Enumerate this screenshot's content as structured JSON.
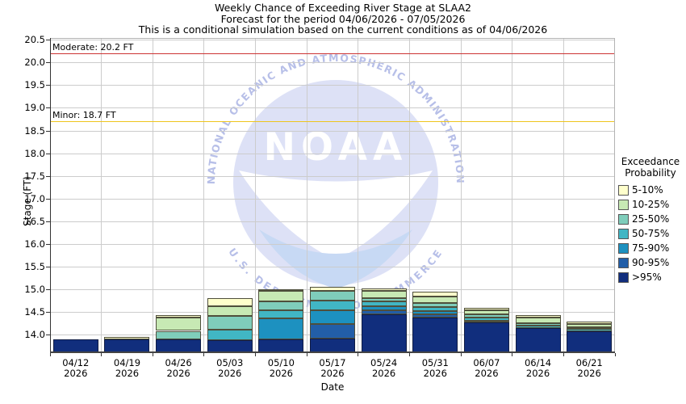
{
  "title": {
    "line1": "Weekly Chance of Exceeding River Stage at SLAA2",
    "line2": "Forecast for the period 04/06/2026 - 07/05/2026",
    "line3": "This is a conditional simulation based on the current conditions as of 04/06/2026"
  },
  "axes": {
    "ylabel": "Stage (FT)",
    "xlabel": "Date",
    "year_label": "2026"
  },
  "reference_lines": [
    {
      "name": "moderate",
      "label": "Moderate: 20.2 FT",
      "value": 20.2,
      "color": "#cc3333"
    },
    {
      "name": "minor",
      "label": "Minor: 18.7 FT",
      "value": 18.7,
      "color": "#eec51e"
    }
  ],
  "legend": {
    "title_line1": "Exceedance",
    "title_line2": "Probability"
  },
  "watermark": {
    "arc_top": "NATIONAL OCEANIC AND ATMOSPHERIC ADMINISTRATION",
    "arc_bottom": "U.S. DEPARTMENT OF COMMERCE",
    "wordmark": "NOAA",
    "circle_color": "#dde1f6",
    "arc_text_color": "#b7bfe8",
    "wordmark_color": "#ffffff",
    "wave_color": "#c7d9f4"
  },
  "chart_data": {
    "type": "bar",
    "stacked": true,
    "title": "Weekly Chance of Exceeding River Stage at SLAA2",
    "xlabel": "Date",
    "ylabel": "Stage (FT)",
    "ylim": [
      13.6,
      20.55
    ],
    "yticks": [
      14.0,
      14.5,
      15.0,
      15.5,
      16.0,
      16.5,
      17.0,
      17.5,
      18.0,
      18.5,
      19.0,
      19.5,
      20.0,
      20.5
    ],
    "grid": true,
    "legend_position": "right",
    "bands_bottom_to_top": [
      {
        "label": ">95%",
        "color": "#112e7d"
      },
      {
        "label": "90-95%",
        "color": "#225ea8"
      },
      {
        "label": "75-90%",
        "color": "#1d91c0"
      },
      {
        "label": "50-75%",
        "color": "#41b6c4"
      },
      {
        "label": "25-50%",
        "color": "#7fcdbb"
      },
      {
        "label": "10-25%",
        "color": "#c7e9b4"
      },
      {
        "label": "5-10%",
        "color": "#ffffcc"
      }
    ],
    "base_stage": 13.6,
    "categories": [
      "04/12",
      "04/19",
      "04/26",
      "05/03",
      "05/10",
      "05/17",
      "05/24",
      "05/31",
      "06/07",
      "06/14",
      "06/21"
    ],
    "bars": [
      {
        "date": "04/12",
        "cumulative_tops": [
          13.91,
          13.91,
          13.91,
          13.91,
          13.91,
          13.91,
          13.91
        ]
      },
      {
        "date": "04/19",
        "cumulative_tops": [
          13.91,
          13.91,
          13.91,
          13.91,
          13.91,
          13.91,
          13.96
        ]
      },
      {
        "date": "04/26",
        "cumulative_tops": [
          13.91,
          13.91,
          13.91,
          13.91,
          14.09,
          14.38,
          14.44
        ]
      },
      {
        "date": "05/03",
        "cumulative_tops": [
          13.89,
          13.89,
          13.89,
          14.12,
          14.42,
          14.64,
          14.81
        ]
      },
      {
        "date": "05/10",
        "cumulative_tops": [
          13.91,
          13.91,
          14.36,
          14.54,
          14.74,
          14.98,
          15.0
        ]
      },
      {
        "date": "05/17",
        "cumulative_tops": [
          13.92,
          14.24,
          14.54,
          14.75,
          14.97,
          14.97,
          15.06
        ]
      },
      {
        "date": "05/24",
        "cumulative_tops": [
          14.46,
          14.54,
          14.64,
          14.74,
          14.82,
          14.98,
          15.03
        ]
      },
      {
        "date": "05/31",
        "cumulative_tops": [
          14.39,
          14.45,
          14.53,
          14.61,
          14.71,
          14.84,
          14.96
        ]
      },
      {
        "date": "06/07",
        "cumulative_tops": [
          14.27,
          14.27,
          14.32,
          14.38,
          14.45,
          14.55,
          14.6
        ]
      },
      {
        "date": "06/14",
        "cumulative_tops": [
          14.15,
          14.15,
          14.15,
          14.2,
          14.26,
          14.38,
          14.43
        ]
      },
      {
        "date": "06/21",
        "cumulative_tops": [
          14.08,
          14.08,
          14.08,
          14.13,
          14.17,
          14.25,
          14.3
        ]
      }
    ]
  }
}
